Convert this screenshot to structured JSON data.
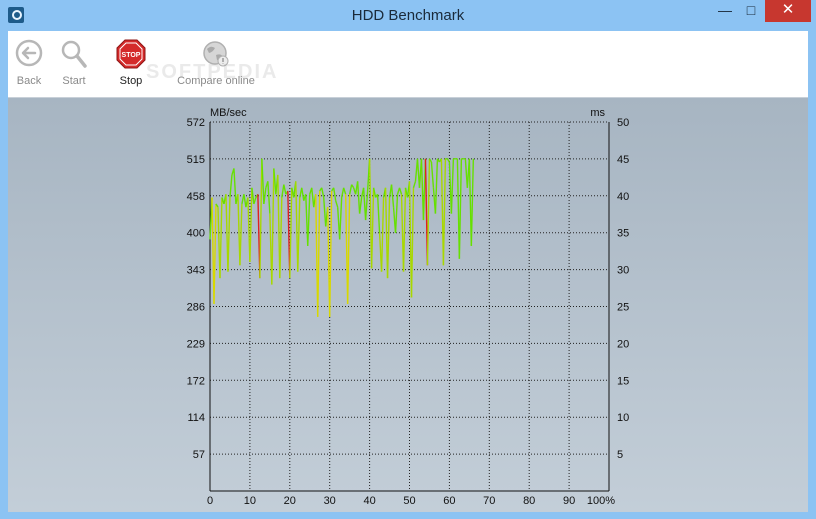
{
  "window": {
    "title": "HDD Benchmark",
    "controls": {
      "minimize": "—",
      "maximize": "□",
      "close": "✕"
    }
  },
  "toolbar": {
    "back_label": "Back",
    "start_label": "Start",
    "stop_label": "Stop",
    "stop_icon_text": "STOP",
    "compare_label": "Compare online"
  },
  "watermark": "SOFTPEDIA",
  "colors": {
    "accent": "#8cc3f3",
    "stop": "#d42a2a",
    "series_good": "#66e000",
    "series_mid": "#d8d800",
    "series_bad": "#e02020"
  },
  "chart_data": {
    "type": "line",
    "left_axis_label": "MB/sec",
    "right_axis_label": "ms",
    "left_ticks": [
      "572",
      "515",
      "458",
      "400",
      "343",
      "286",
      "229",
      "172",
      "114",
      "57"
    ],
    "right_ticks": [
      "50",
      "45",
      "40",
      "35",
      "30",
      "25",
      "20",
      "15",
      "10",
      "5"
    ],
    "x_ticks": [
      "0",
      "10",
      "20",
      "30",
      "40",
      "50",
      "60",
      "70",
      "80",
      "90",
      "100%"
    ],
    "ylim": [
      0,
      572
    ],
    "xlim": [
      0,
      100
    ],
    "grid": true,
    "series": [
      {
        "x": [
          0,
          0.5,
          1,
          1.5,
          2,
          2.5,
          3,
          3.5,
          4,
          4.5,
          5,
          5.5,
          6,
          6.5,
          7,
          7.5,
          8,
          8.5,
          9,
          9.5,
          10,
          10.5,
          11,
          11.5,
          12,
          12.5,
          13,
          13.5,
          14,
          14.5,
          15,
          15.5,
          16,
          16.5,
          17,
          17.5,
          18,
          18.5,
          19,
          19.5,
          20,
          20.5,
          21,
          21.5,
          22,
          22.5,
          23,
          23.5,
          24,
          24.5,
          25,
          25.5,
          26,
          26.5,
          27,
          27.5,
          28,
          28.5,
          29,
          29.5,
          30,
          30.5,
          31,
          31.5,
          32,
          32.5,
          33,
          33.5,
          34,
          34.5,
          35,
          35.5,
          36,
          36.5,
          37,
          37.5,
          38,
          38.5,
          39,
          39.5,
          40,
          40.5,
          41,
          41.5,
          42,
          42.5,
          43,
          43.5,
          44,
          44.5,
          45,
          45.5,
          46,
          46.5,
          47,
          47.5,
          48,
          48.5,
          49,
          49.5,
          50,
          50.5,
          51,
          51.5,
          52,
          52.5,
          53,
          53.5,
          54,
          54.5,
          55,
          55.5,
          56,
          56.5,
          57,
          57.5,
          58,
          58.5,
          59,
          59.5,
          60,
          60.5,
          61,
          61.5,
          62,
          62.5,
          63,
          63.5,
          64,
          64.5,
          65,
          65.5,
          66
        ],
        "y": [
          390,
          455,
          290,
          445,
          440,
          330,
          455,
          445,
          460,
          340,
          455,
          490,
          500,
          445,
          460,
          350,
          445,
          460,
          440,
          455,
          355,
          470,
          445,
          455,
          460,
          330,
          515,
          445,
          470,
          480,
          430,
          320,
          500,
          460,
          490,
          330,
          455,
          475,
          460,
          465,
          330,
          470,
          455,
          480,
          340,
          455,
          470,
          450,
          460,
          380,
          460,
          470,
          440,
          460,
          270,
          465,
          470,
          455,
          410,
          440,
          270,
          465,
          470,
          450,
          440,
          390,
          455,
          470,
          460,
          290,
          460,
          475,
          470,
          460,
          480,
          430,
          455,
          470,
          420,
          465,
          515,
          345,
          470,
          455,
          460,
          400,
          340,
          455,
          470,
          330,
          455,
          475,
          440,
          400,
          460,
          470,
          460,
          340,
          470,
          455,
          480,
          300,
          470,
          480,
          515,
          470,
          515,
          420,
          515,
          350,
          515,
          510,
          470,
          430,
          515,
          510,
          515,
          350,
          515,
          515,
          510,
          430,
          515,
          515,
          515,
          360,
          515,
          515,
          515,
          470,
          515,
          380,
          515
        ]
      }
    ]
  }
}
